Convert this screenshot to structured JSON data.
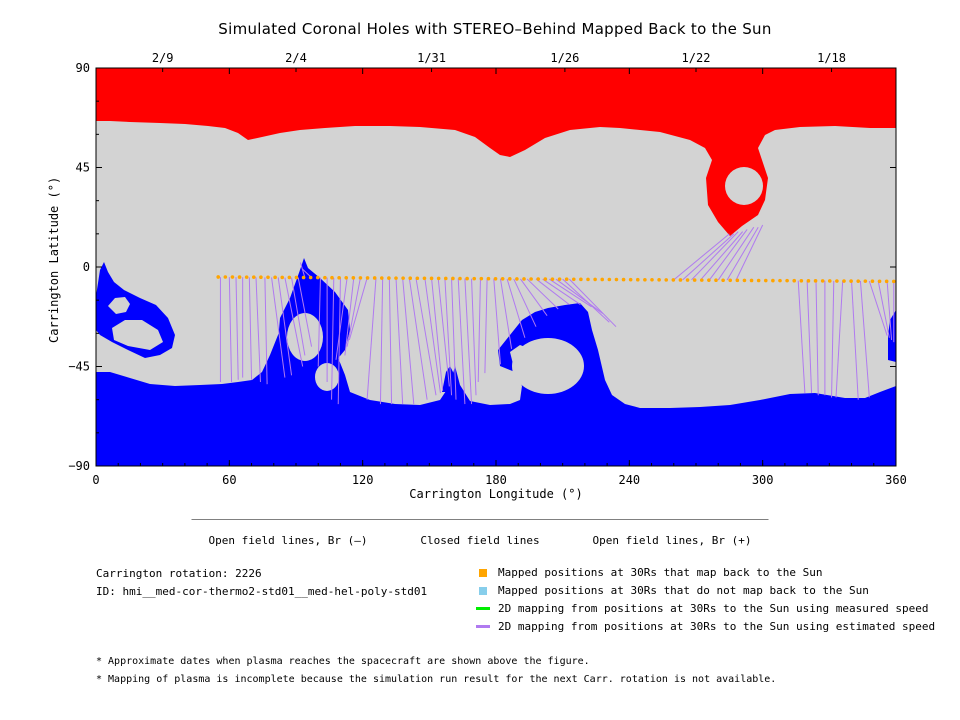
{
  "title": "Simulated Coronal Holes with STEREO–Behind Mapped Back to the Sun",
  "chart_data": {
    "type": "heatmap",
    "xlabel": "Carrington Longitude (°)",
    "ylabel": "Carrington Latitude (°)",
    "xlim": [
      0,
      360
    ],
    "ylim": [
      -90,
      90
    ],
    "x_ticks": [
      0,
      60,
      120,
      180,
      240,
      300,
      360
    ],
    "y_ticks": [
      90,
      45,
      0,
      -45,
      -90
    ],
    "top_axis_dates": [
      {
        "label": "2/9",
        "x": 30
      },
      {
        "label": "2/4",
        "x": 90
      },
      {
        "label": "1/31",
        "x": 151
      },
      {
        "label": "1/26",
        "x": 211
      },
      {
        "label": "1/22",
        "x": 270
      },
      {
        "label": "1/18",
        "x": 331
      }
    ],
    "colorbar": [
      {
        "label": "Open field lines, Br (–)",
        "color": "#0000ff"
      },
      {
        "label": "Closed field lines",
        "color": "#d3d3d3"
      },
      {
        "label": "Open field lines, Br (+)",
        "color": "#ff0000"
      }
    ],
    "mapped_points": {
      "name": "Mapped positions at 30Rs that map back to the Sun",
      "color": "#ffa500",
      "lon_start": 55,
      "lat_start": -4.5,
      "lon_end": 359,
      "lat_end": -6.5,
      "count": 96
    },
    "estimated_speed_mapping": [
      {
        "from": [
          56,
          -4.6
        ],
        "to": [
          56,
          -52
        ]
      },
      {
        "from": [
          60,
          -4.6
        ],
        "to": [
          61,
          -52
        ]
      },
      {
        "from": [
          63,
          -4.6
        ],
        "to": [
          64,
          -51
        ]
      },
      {
        "from": [
          66,
          -4.6
        ],
        "to": [
          66,
          -50
        ]
      },
      {
        "from": [
          69,
          -4.7
        ],
        "to": [
          70,
          -51
        ]
      },
      {
        "from": [
          72,
          -4.7
        ],
        "to": [
          74,
          -52
        ]
      },
      {
        "from": [
          76,
          -4.7
        ],
        "to": [
          77,
          -53
        ]
      },
      {
        "from": [
          79,
          -4.7
        ],
        "to": [
          85,
          -50
        ]
      },
      {
        "from": [
          82,
          -4.7
        ],
        "to": [
          88,
          -49
        ]
      },
      {
        "from": [
          85,
          -4.8
        ],
        "to": [
          93,
          -45
        ]
      },
      {
        "from": [
          88,
          -4.8
        ],
        "to": [
          94,
          -40
        ]
      },
      {
        "from": [
          91,
          -4.8
        ],
        "to": [
          97,
          -36
        ]
      },
      {
        "from": [
          94,
          -4.8
        ],
        "to": [
          92,
          2
        ]
      },
      {
        "from": [
          97,
          -4.8
        ],
        "to": [
          93,
          -1
        ]
      },
      {
        "from": [
          101,
          -4.8
        ],
        "to": [
          100,
          -45
        ]
      },
      {
        "from": [
          104,
          -4.8
        ],
        "to": [
          104,
          -52
        ]
      },
      {
        "from": [
          107,
          -4.9
        ],
        "to": [
          106,
          -60
        ]
      },
      {
        "from": [
          110,
          -4.9
        ],
        "to": [
          109,
          -62
        ]
      },
      {
        "from": [
          113,
          -4.9
        ],
        "to": [
          108,
          -42
        ]
      },
      {
        "from": [
          116,
          -4.9
        ],
        "to": [
          112,
          -40
        ]
      },
      {
        "from": [
          119,
          -4.9
        ],
        "to": [
          113,
          -36
        ]
      },
      {
        "from": [
          122,
          -5.0
        ],
        "to": [
          114,
          -33
        ]
      },
      {
        "from": [
          126,
          -5.0
        ],
        "to": [
          122,
          -60
        ]
      },
      {
        "from": [
          129,
          -5.0
        ],
        "to": [
          128,
          -62
        ]
      },
      {
        "from": [
          132,
          -5.0
        ],
        "to": [
          133,
          -62
        ]
      },
      {
        "from": [
          135,
          -5.0
        ],
        "to": [
          138,
          -62
        ]
      },
      {
        "from": [
          138,
          -5.1
        ],
        "to": [
          143,
          -62
        ]
      },
      {
        "from": [
          141,
          -5.1
        ],
        "to": [
          149,
          -60
        ]
      },
      {
        "from": [
          144,
          -5.1
        ],
        "to": [
          153,
          -58
        ]
      },
      {
        "from": [
          148,
          -5.1
        ],
        "to": [
          155,
          -57
        ]
      },
      {
        "from": [
          151,
          -5.1
        ],
        "to": [
          156,
          -56
        ]
      },
      {
        "from": [
          154,
          -5.2
        ],
        "to": [
          159,
          -54
        ]
      },
      {
        "from": [
          157,
          -5.2
        ],
        "to": [
          160,
          -58
        ]
      },
      {
        "from": [
          160,
          -5.2
        ],
        "to": [
          162,
          -60
        ]
      },
      {
        "from": [
          163,
          -5.2
        ],
        "to": [
          166,
          -62
        ]
      },
      {
        "from": [
          166,
          -5.2
        ],
        "to": [
          169,
          -62
        ]
      },
      {
        "from": [
          169,
          -5.3
        ],
        "to": [
          171,
          -58
        ]
      },
      {
        "from": [
          173,
          -5.3
        ],
        "to": [
          172,
          -52
        ]
      },
      {
        "from": [
          176,
          -5.3
        ],
        "to": [
          175,
          -48
        ]
      },
      {
        "from": [
          179,
          -5.3
        ],
        "to": [
          182,
          -44
        ]
      },
      {
        "from": [
          182,
          -5.3
        ],
        "to": [
          187,
          -37
        ]
      },
      {
        "from": [
          185,
          -5.4
        ],
        "to": [
          193,
          -32
        ]
      },
      {
        "from": [
          188,
          -5.4
        ],
        "to": [
          198,
          -27
        ]
      },
      {
        "from": [
          191,
          -5.4
        ],
        "to": [
          203,
          -22
        ]
      },
      {
        "from": [
          194,
          -5.4
        ],
        "to": [
          208,
          -19
        ]
      },
      {
        "from": [
          198,
          -5.4
        ],
        "to": [
          213,
          -17
        ]
      },
      {
        "from": [
          201,
          -5.5
        ],
        "to": [
          218,
          -17
        ]
      },
      {
        "from": [
          204,
          -5.5
        ],
        "to": [
          223,
          -18
        ]
      },
      {
        "from": [
          207,
          -5.5
        ],
        "to": [
          228,
          -21
        ]
      },
      {
        "from": [
          210,
          -5.5
        ],
        "to": [
          231,
          -25
        ]
      },
      {
        "from": [
          213,
          -5.5
        ],
        "to": [
          234,
          -27
        ]
      },
      {
        "from": [
          260,
          -5.8
        ],
        "to": [
          285,
          15
        ]
      },
      {
        "from": [
          264,
          -5.8
        ],
        "to": [
          287,
          15
        ]
      },
      {
        "from": [
          268,
          -5.8
        ],
        "to": [
          289,
          16
        ]
      },
      {
        "from": [
          272,
          -5.9
        ],
        "to": [
          291,
          16
        ]
      },
      {
        "from": [
          276,
          -5.9
        ],
        "to": [
          293,
          17
        ]
      },
      {
        "from": [
          280,
          -5.9
        ],
        "to": [
          296,
          18
        ]
      },
      {
        "from": [
          284,
          -5.9
        ],
        "to": [
          298,
          18
        ]
      },
      {
        "from": [
          288,
          -6.0
        ],
        "to": [
          300,
          19
        ]
      },
      {
        "from": [
          316,
          -6.2
        ],
        "to": [
          319,
          -57
        ]
      },
      {
        "from": [
          320,
          -6.2
        ],
        "to": [
          322,
          -57
        ]
      },
      {
        "from": [
          324,
          -6.2
        ],
        "to": [
          325,
          -58
        ]
      },
      {
        "from": [
          328,
          -6.2
        ],
        "to": [
          328,
          -58
        ]
      },
      {
        "from": [
          332,
          -6.3
        ],
        "to": [
          331,
          -59
        ]
      },
      {
        "from": [
          336,
          -6.3
        ],
        "to": [
          333,
          -59
        ]
      },
      {
        "from": [
          340,
          -6.3
        ],
        "to": [
          343,
          -60
        ]
      },
      {
        "from": [
          344,
          -6.3
        ],
        "to": [
          348,
          -59
        ]
      },
      {
        "from": [
          348,
          -6.4
        ],
        "to": [
          356,
          -31
        ]
      },
      {
        "from": [
          352,
          -6.4
        ],
        "to": [
          357,
          -32
        ]
      },
      {
        "from": [
          356,
          -6.4
        ],
        "to": [
          358,
          -33
        ]
      },
      {
        "from": [
          359,
          -6.5
        ],
        "to": [
          359,
          -34
        ]
      }
    ]
  },
  "legend": {
    "items": [
      {
        "label": "Mapped positions at 30Rs that map back to the Sun",
        "color": "#ffa500",
        "kind": "square"
      },
      {
        "label": "Mapped positions at 30Rs that do not map back to the Sun",
        "color": "#87ceeb",
        "kind": "square"
      },
      {
        "label": "2D mapping from positions at 30Rs to the Sun using measured speed",
        "color": "#00ee00",
        "kind": "line"
      },
      {
        "label": "2D mapping from positions at 30Rs to the Sun using estimated speed",
        "color": "#b07af0",
        "kind": "line"
      }
    ]
  },
  "info": {
    "rotation": "Carrington rotation: 2226",
    "id": "ID: hmi__med-cor-thermo2-std01__med-hel-poly-std01"
  },
  "notes": {
    "note1": "* Approximate dates when plasma reaches the spacecraft are shown above the figure.",
    "note2": "* Mapping of plasma is incomplete because the simulation run result for the next Carr. rotation is not available."
  }
}
